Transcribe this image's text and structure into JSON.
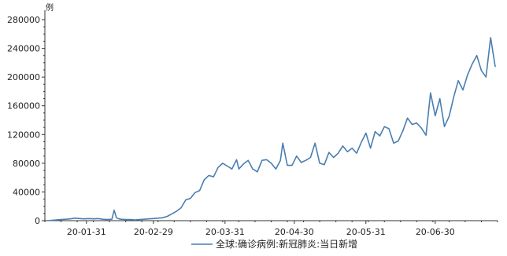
{
  "chart_data": {
    "type": "line",
    "ylabel": "例",
    "ylim": [
      0,
      280000
    ],
    "y_ticks": [
      0,
      40000,
      80000,
      120000,
      160000,
      200000,
      240000,
      280000
    ],
    "y_tick_labels": [
      "0",
      "40000",
      "80000",
      "120000",
      "160000",
      "200000",
      "240000",
      "280000"
    ],
    "x_tick_labels": [
      "20-01-31",
      "20-02-29",
      "20-03-31",
      "20-04-30",
      "20-05-31",
      "20-06-30"
    ],
    "x_range": [
      "2020-01-13",
      "2020-07-27"
    ],
    "x_ticks": [
      "2020-01-31",
      "2020-02-29",
      "2020-03-31",
      "2020-04-30",
      "2020-05-31",
      "2020-06-30"
    ],
    "grid": false,
    "legend_position": "bottom-center",
    "series": [
      {
        "name": "全球:确诊病例:新冠肺炎:当日新增",
        "color": "#4a7eb0",
        "x": [
          "2020-01-14",
          "2020-01-16",
          "2020-01-18",
          "2020-01-20",
          "2020-01-22",
          "2020-01-24",
          "2020-01-26",
          "2020-01-28",
          "2020-01-30",
          "2020-02-01",
          "2020-02-03",
          "2020-02-05",
          "2020-02-07",
          "2020-02-09",
          "2020-02-11",
          "2020-02-12",
          "2020-02-13",
          "2020-02-14",
          "2020-02-15",
          "2020-02-17",
          "2020-02-19",
          "2020-02-21",
          "2020-02-23",
          "2020-02-25",
          "2020-02-27",
          "2020-02-29",
          "2020-03-02",
          "2020-03-04",
          "2020-03-06",
          "2020-03-08",
          "2020-03-10",
          "2020-03-12",
          "2020-03-14",
          "2020-03-16",
          "2020-03-18",
          "2020-03-20",
          "2020-03-22",
          "2020-03-24",
          "2020-03-26",
          "2020-03-28",
          "2020-03-30",
          "2020-04-01",
          "2020-04-03",
          "2020-04-05",
          "2020-04-06",
          "2020-04-08",
          "2020-04-10",
          "2020-04-12",
          "2020-04-14",
          "2020-04-16",
          "2020-04-18",
          "2020-04-20",
          "2020-04-22",
          "2020-04-24",
          "2020-04-25",
          "2020-04-27",
          "2020-04-29",
          "2020-05-01",
          "2020-05-03",
          "2020-05-05",
          "2020-05-07",
          "2020-05-09",
          "2020-05-11",
          "2020-05-13",
          "2020-05-15",
          "2020-05-17",
          "2020-05-19",
          "2020-05-21",
          "2020-05-23",
          "2020-05-25",
          "2020-05-27",
          "2020-05-29",
          "2020-05-31",
          "2020-06-02",
          "2020-06-04",
          "2020-06-06",
          "2020-06-08",
          "2020-06-10",
          "2020-06-12",
          "2020-06-14",
          "2020-06-16",
          "2020-06-18",
          "2020-06-20",
          "2020-06-22",
          "2020-06-24",
          "2020-06-26",
          "2020-06-28",
          "2020-06-30",
          "2020-07-02",
          "2020-07-04",
          "2020-07-06",
          "2020-07-08",
          "2020-07-10",
          "2020-07-12",
          "2020-07-14",
          "2020-07-16",
          "2020-07-18",
          "2020-07-20",
          "2020-07-22",
          "2020-07-24",
          "2020-07-26"
        ],
        "values": [
          0,
          500,
          1000,
          1500,
          2000,
          2500,
          3500,
          3000,
          2500,
          3000,
          2500,
          3000,
          2000,
          1500,
          2000,
          14500,
          4000,
          2500,
          2000,
          1500,
          1500,
          1000,
          1500,
          2000,
          2500,
          3000,
          3500,
          4000,
          6000,
          9500,
          13000,
          18000,
          29000,
          31000,
          39000,
          42000,
          57000,
          63000,
          61000,
          74000,
          80000,
          76000,
          72000,
          85000,
          72000,
          79000,
          84000,
          72000,
          68000,
          84000,
          85000,
          80000,
          72000,
          84000,
          108000,
          77000,
          77000,
          90000,
          81000,
          84000,
          88000,
          108000,
          80000,
          78000,
          95000,
          88000,
          94000,
          104000,
          96000,
          101000,
          94000,
          109000,
          122000,
          101000,
          124000,
          118000,
          131000,
          128000,
          108000,
          111000,
          125000,
          143000,
          134000,
          136000,
          129000,
          119000,
          178000,
          146000,
          170000,
          131000,
          145000,
          172000,
          195000,
          182000,
          203000,
          218000,
          230000,
          209000,
          200000,
          255000,
          214000
        ]
      }
    ]
  }
}
